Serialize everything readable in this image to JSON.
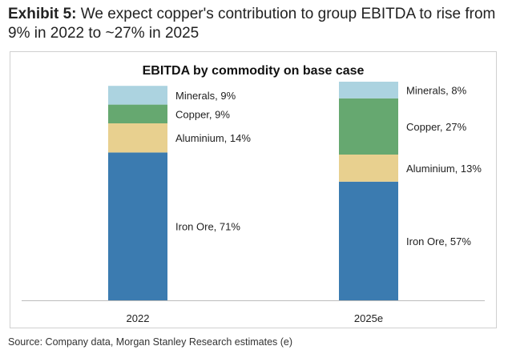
{
  "exhibit": {
    "label": "Exhibit 5:",
    "text": "We expect copper's contribution to group EBITDA to rise from 9% in 2022 to ~27% in 2025"
  },
  "source": "Source: Company data, Morgan Stanley Research estimates (e)",
  "chart_data": {
    "type": "bar",
    "stacked": true,
    "title": "EBITDA by commodity on base case",
    "categories": [
      "2022",
      "2025e"
    ],
    "ylim": [
      0,
      100
    ],
    "series": [
      {
        "name": "Iron Ore",
        "color": "#3b7bb0",
        "values": [
          71,
          57
        ],
        "labels": [
          "Iron Ore, 71%",
          "Iron Ore, 57%"
        ]
      },
      {
        "name": "Aluminium",
        "color": "#e8d08f",
        "values": [
          14,
          13
        ],
        "labels": [
          "Aluminium, 14%",
          "Aluminium, 13%"
        ]
      },
      {
        "name": "Copper",
        "color": "#66a870",
        "values": [
          9,
          27
        ],
        "labels": [
          "Copper, 9%",
          "Copper, 27%"
        ]
      },
      {
        "name": "Minerals",
        "color": "#acd3e0",
        "values": [
          9,
          8
        ],
        "labels": [
          "Minerals, 9%",
          "Minerals, 8%"
        ]
      }
    ]
  }
}
